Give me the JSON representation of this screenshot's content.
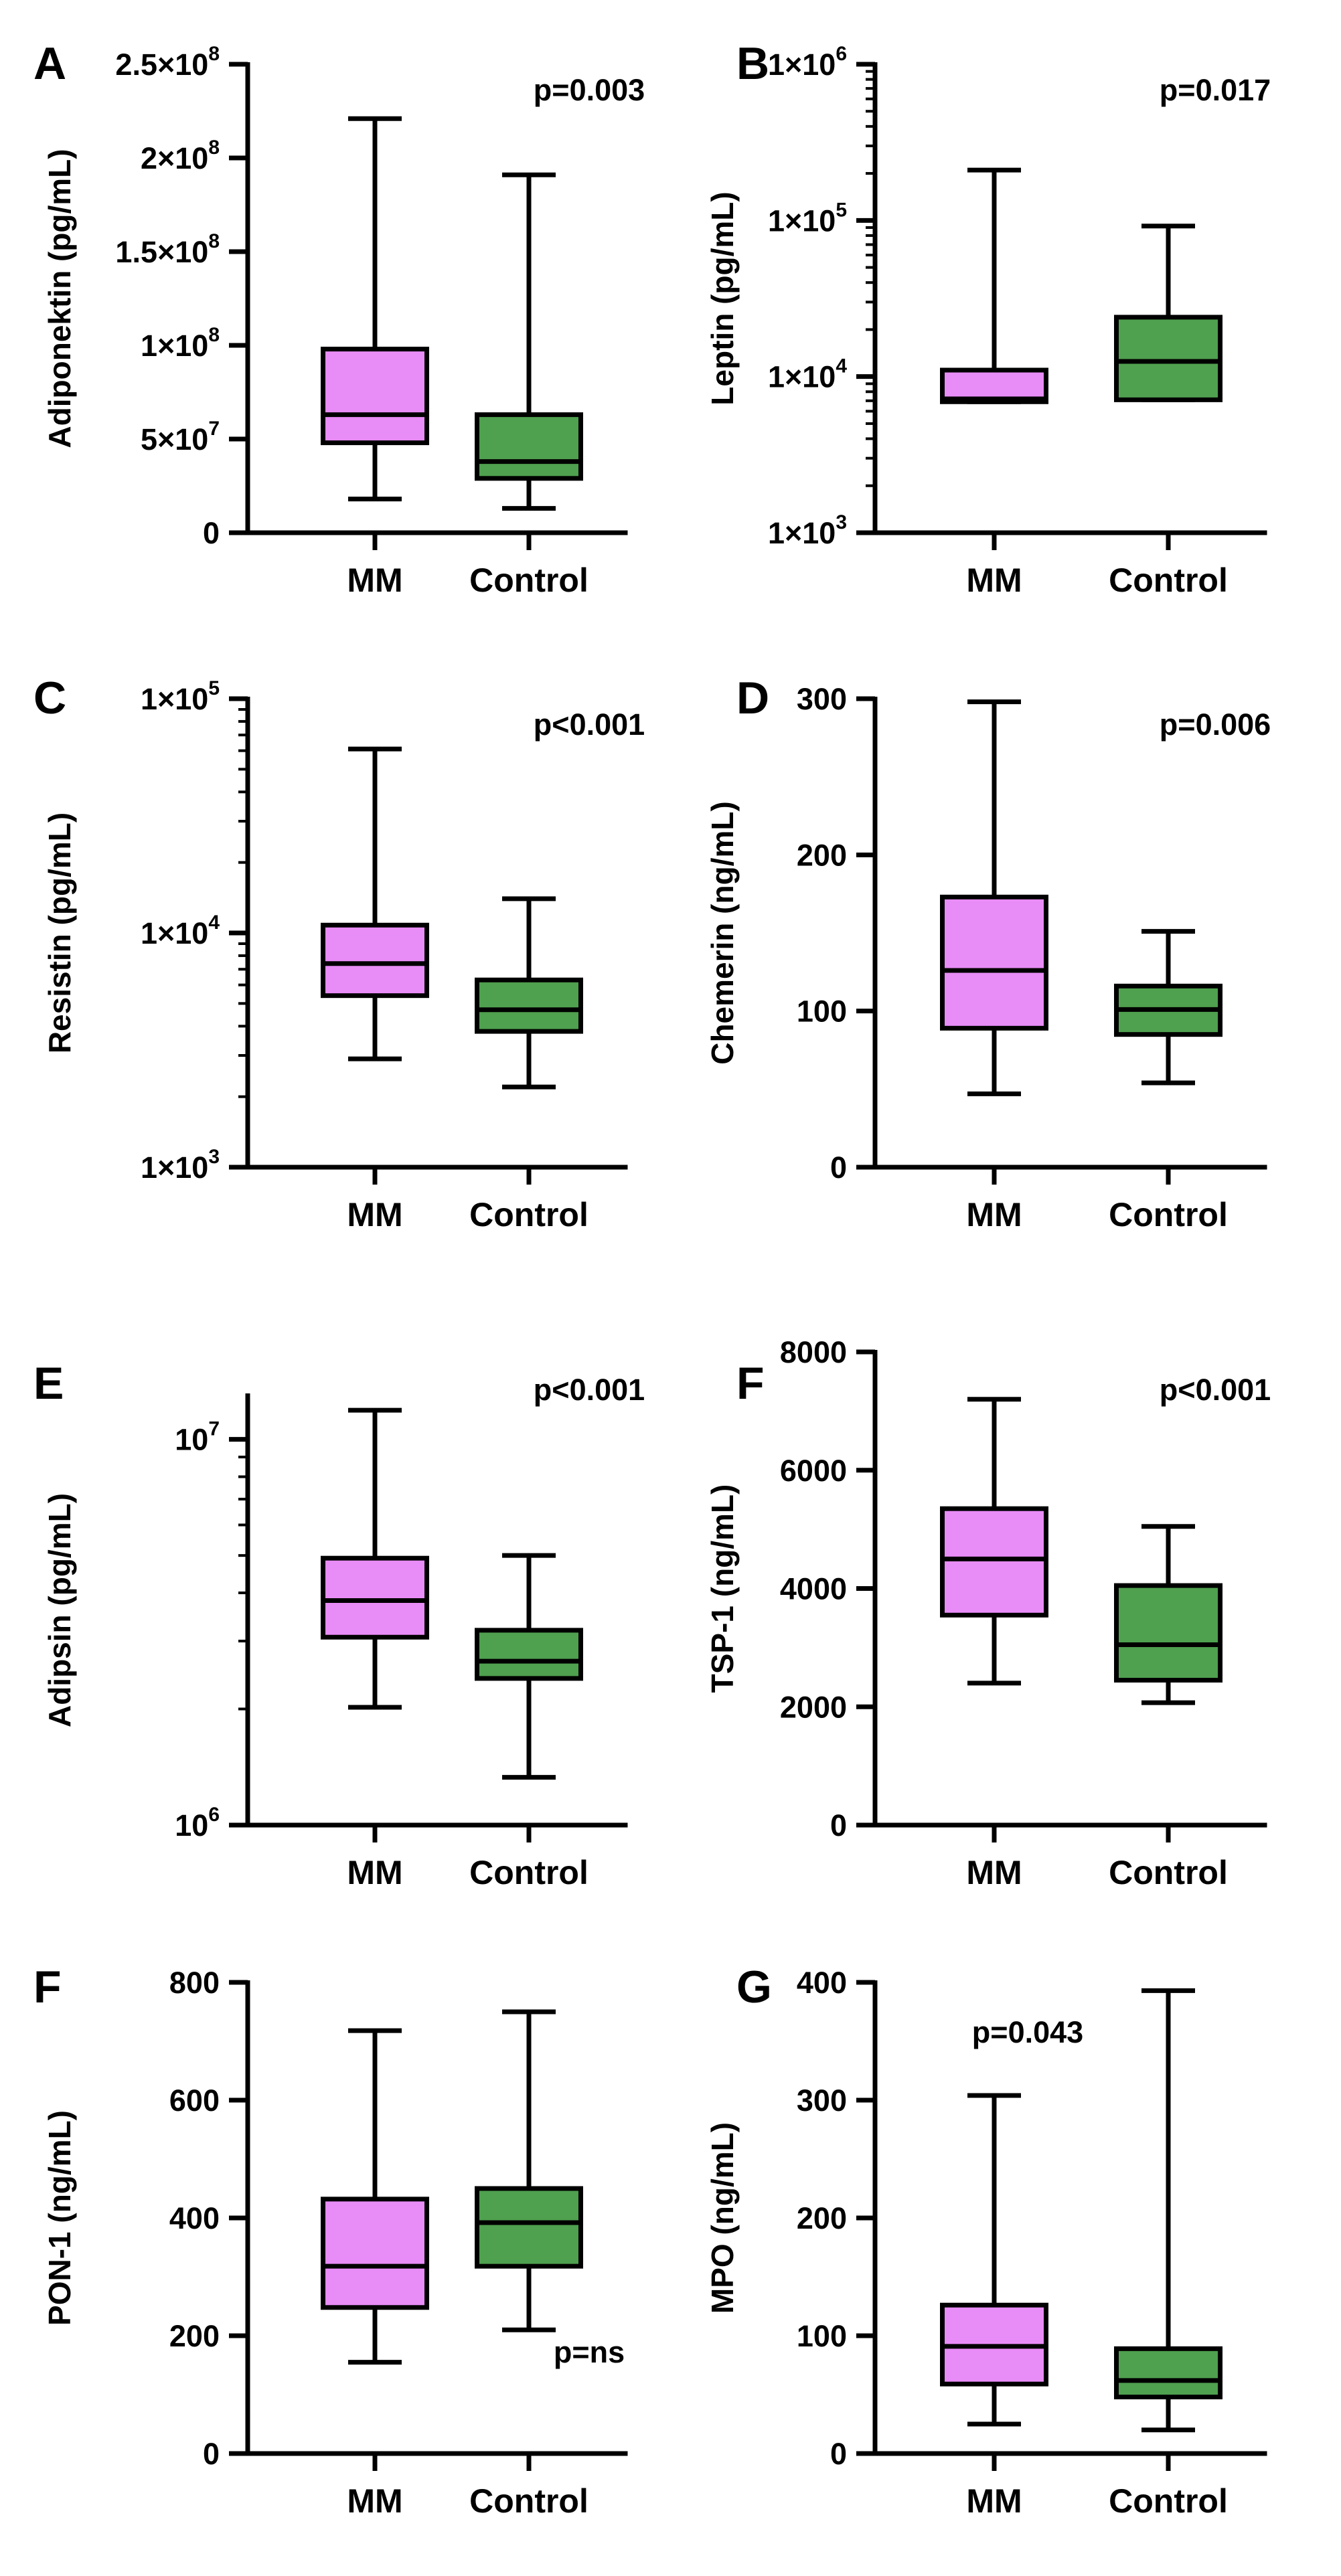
{
  "colors": {
    "mm": "#E88CF7",
    "control": "#4FA04F",
    "line": "#000000"
  },
  "chart_data": [
    {
      "type": "box",
      "panel": "A",
      "ylabel": "Adiponektin (pg/mL)",
      "scale": "linear",
      "ylim": [
        0,
        250000000
      ],
      "yticks": [
        {
          "value": 0,
          "label": "0"
        },
        {
          "value": 50000000,
          "label": "5×10",
          "sup": "7"
        },
        {
          "value": 100000000,
          "label": "1×10",
          "sup": "8"
        },
        {
          "value": 150000000,
          "label": "1.5×10",
          "sup": "8"
        },
        {
          "value": 200000000,
          "label": "2×10",
          "sup": "8"
        },
        {
          "value": 250000000,
          "label": "2.5×10",
          "sup": "8"
        }
      ],
      "categories": [
        "MM",
        "Control"
      ],
      "boxes": [
        {
          "name": "MM",
          "min": 18000000,
          "q1": 48000000,
          "median": 63000000,
          "q3": 98000000,
          "max": 221000000
        },
        {
          "name": "Control",
          "min": 13000000,
          "q1": 29000000,
          "median": 38000000,
          "q3": 63000000,
          "max": 191000000
        }
      ],
      "pvalue": "p=0.003",
      "pvalue_position": "top"
    },
    {
      "type": "box",
      "panel": "B",
      "ylabel": "Leptin (pg/mL)",
      "scale": "log",
      "ylim": [
        1000,
        1000000
      ],
      "yticks": [
        {
          "value": 1000,
          "label": "1×10",
          "sup": "3"
        },
        {
          "value": 10000,
          "label": "1×10",
          "sup": "4"
        },
        {
          "value": 100000,
          "label": "1×10",
          "sup": "5"
        },
        {
          "value": 1000000,
          "label": "1×10",
          "sup": "6"
        }
      ],
      "categories": [
        "MM",
        "Control"
      ],
      "boxes": [
        {
          "name": "MM",
          "min": 6900,
          "q1": 6900,
          "median": 7200,
          "q3": 11000,
          "max": 210000
        },
        {
          "name": "Control",
          "min": 7100,
          "q1": 7100,
          "median": 12500,
          "q3": 24000,
          "max": 92000
        }
      ],
      "pvalue": "p=0.017",
      "pvalue_position": "top"
    },
    {
      "type": "box",
      "panel": "C",
      "ylabel": "Resistin (pg/mL)",
      "scale": "log",
      "ylim": [
        1000,
        100000
      ],
      "yticks": [
        {
          "value": 1000,
          "label": "1×10",
          "sup": "3"
        },
        {
          "value": 10000,
          "label": "1×10",
          "sup": "4"
        },
        {
          "value": 100000,
          "label": "1×10",
          "sup": "5"
        }
      ],
      "categories": [
        "MM",
        "Control"
      ],
      "boxes": [
        {
          "name": "MM",
          "min": 2900,
          "q1": 5400,
          "median": 7400,
          "q3": 10800,
          "max": 61000
        },
        {
          "name": "Control",
          "min": 2200,
          "q1": 3800,
          "median": 4700,
          "q3": 6300,
          "max": 14000
        }
      ],
      "pvalue": "p<0.001",
      "pvalue_position": "top"
    },
    {
      "type": "box",
      "panel": "D",
      "ylabel": "Chemerin (ng/mL)",
      "scale": "linear",
      "ylim": [
        0,
        300
      ],
      "yticks": [
        {
          "value": 0,
          "label": "0"
        },
        {
          "value": 100,
          "label": "100"
        },
        {
          "value": 200,
          "label": "200"
        },
        {
          "value": 300,
          "label": "300"
        }
      ],
      "categories": [
        "MM",
        "Control"
      ],
      "boxes": [
        {
          "name": "MM",
          "min": 47,
          "q1": 89,
          "median": 126,
          "q3": 173,
          "max": 298
        },
        {
          "name": "Control",
          "min": 54,
          "q1": 85,
          "median": 101,
          "q3": 116,
          "max": 151
        }
      ],
      "pvalue": "p=0.006",
      "pvalue_position": "top"
    },
    {
      "type": "box",
      "panel": "E",
      "ylabel": "Adipsin (pg/mL)",
      "scale": "log",
      "ylim": [
        1000000,
        13000000
      ],
      "yticks": [
        {
          "value": 1000000,
          "label": "10",
          "sup": "6"
        },
        {
          "value": 10000000,
          "label": "10",
          "sup": "7"
        }
      ],
      "categories": [
        "MM",
        "Control"
      ],
      "boxes": [
        {
          "name": "MM",
          "min": 2020000,
          "q1": 3070000,
          "median": 3820000,
          "q3": 4920000,
          "max": 11900000
        },
        {
          "name": "Control",
          "min": 1330000,
          "q1": 2400000,
          "median": 2660000,
          "q3": 3200000,
          "max": 5000000
        }
      ],
      "pvalue": "p<0.001",
      "pvalue_position": "top"
    },
    {
      "type": "box",
      "panel": "F",
      "ylabel": "TSP-1 (ng/mL)",
      "scale": "linear",
      "ylim": [
        0,
        8000
      ],
      "yticks": [
        {
          "value": 0,
          "label": "0"
        },
        {
          "value": 2000,
          "label": "2000"
        },
        {
          "value": 4000,
          "label": "4000"
        },
        {
          "value": 6000,
          "label": "6000"
        },
        {
          "value": 8000,
          "label": "8000"
        }
      ],
      "categories": [
        "MM",
        "Control"
      ],
      "boxes": [
        {
          "name": "MM",
          "min": 2400,
          "q1": 3550,
          "median": 4500,
          "q3": 5350,
          "max": 7200
        },
        {
          "name": "Control",
          "min": 2070,
          "q1": 2450,
          "median": 3050,
          "q3": 4050,
          "max": 5050
        }
      ],
      "pvalue": "p<0.001",
      "pvalue_position": "top"
    },
    {
      "type": "box",
      "panel": "F",
      "ylabel": "PON-1 (ng/mL)",
      "scale": "linear",
      "ylim": [
        0,
        800
      ],
      "yticks": [
        {
          "value": 0,
          "label": "0"
        },
        {
          "value": 200,
          "label": "200"
        },
        {
          "value": 400,
          "label": "400"
        },
        {
          "value": 600,
          "label": "600"
        },
        {
          "value": 800,
          "label": "800"
        }
      ],
      "categories": [
        "MM",
        "Control"
      ],
      "boxes": [
        {
          "name": "MM",
          "min": 155,
          "q1": 248,
          "median": 318,
          "q3": 432,
          "max": 718
        },
        {
          "name": "Control",
          "min": 210,
          "q1": 318,
          "median": 392,
          "q3": 450,
          "max": 750
        }
      ],
      "pvalue": "p=ns",
      "pvalue_position": "bottom"
    },
    {
      "type": "box",
      "panel": "G",
      "ylabel": "MPO (ng/mL)",
      "scale": "linear",
      "ylim": [
        0,
        400
      ],
      "yticks": [
        {
          "value": 0,
          "label": "0"
        },
        {
          "value": 100,
          "label": "100"
        },
        {
          "value": 200,
          "label": "200"
        },
        {
          "value": 300,
          "label": "300"
        },
        {
          "value": 400,
          "label": "400"
        }
      ],
      "categories": [
        "MM",
        "Control"
      ],
      "boxes": [
        {
          "name": "MM",
          "min": 25,
          "q1": 59,
          "median": 91,
          "q3": 126,
          "max": 304
        },
        {
          "name": "Control",
          "min": 20,
          "q1": 48,
          "median": 62,
          "q3": 89,
          "max": 393
        }
      ],
      "pvalue": "p=0.043",
      "pvalue_position": "top-left"
    }
  ]
}
